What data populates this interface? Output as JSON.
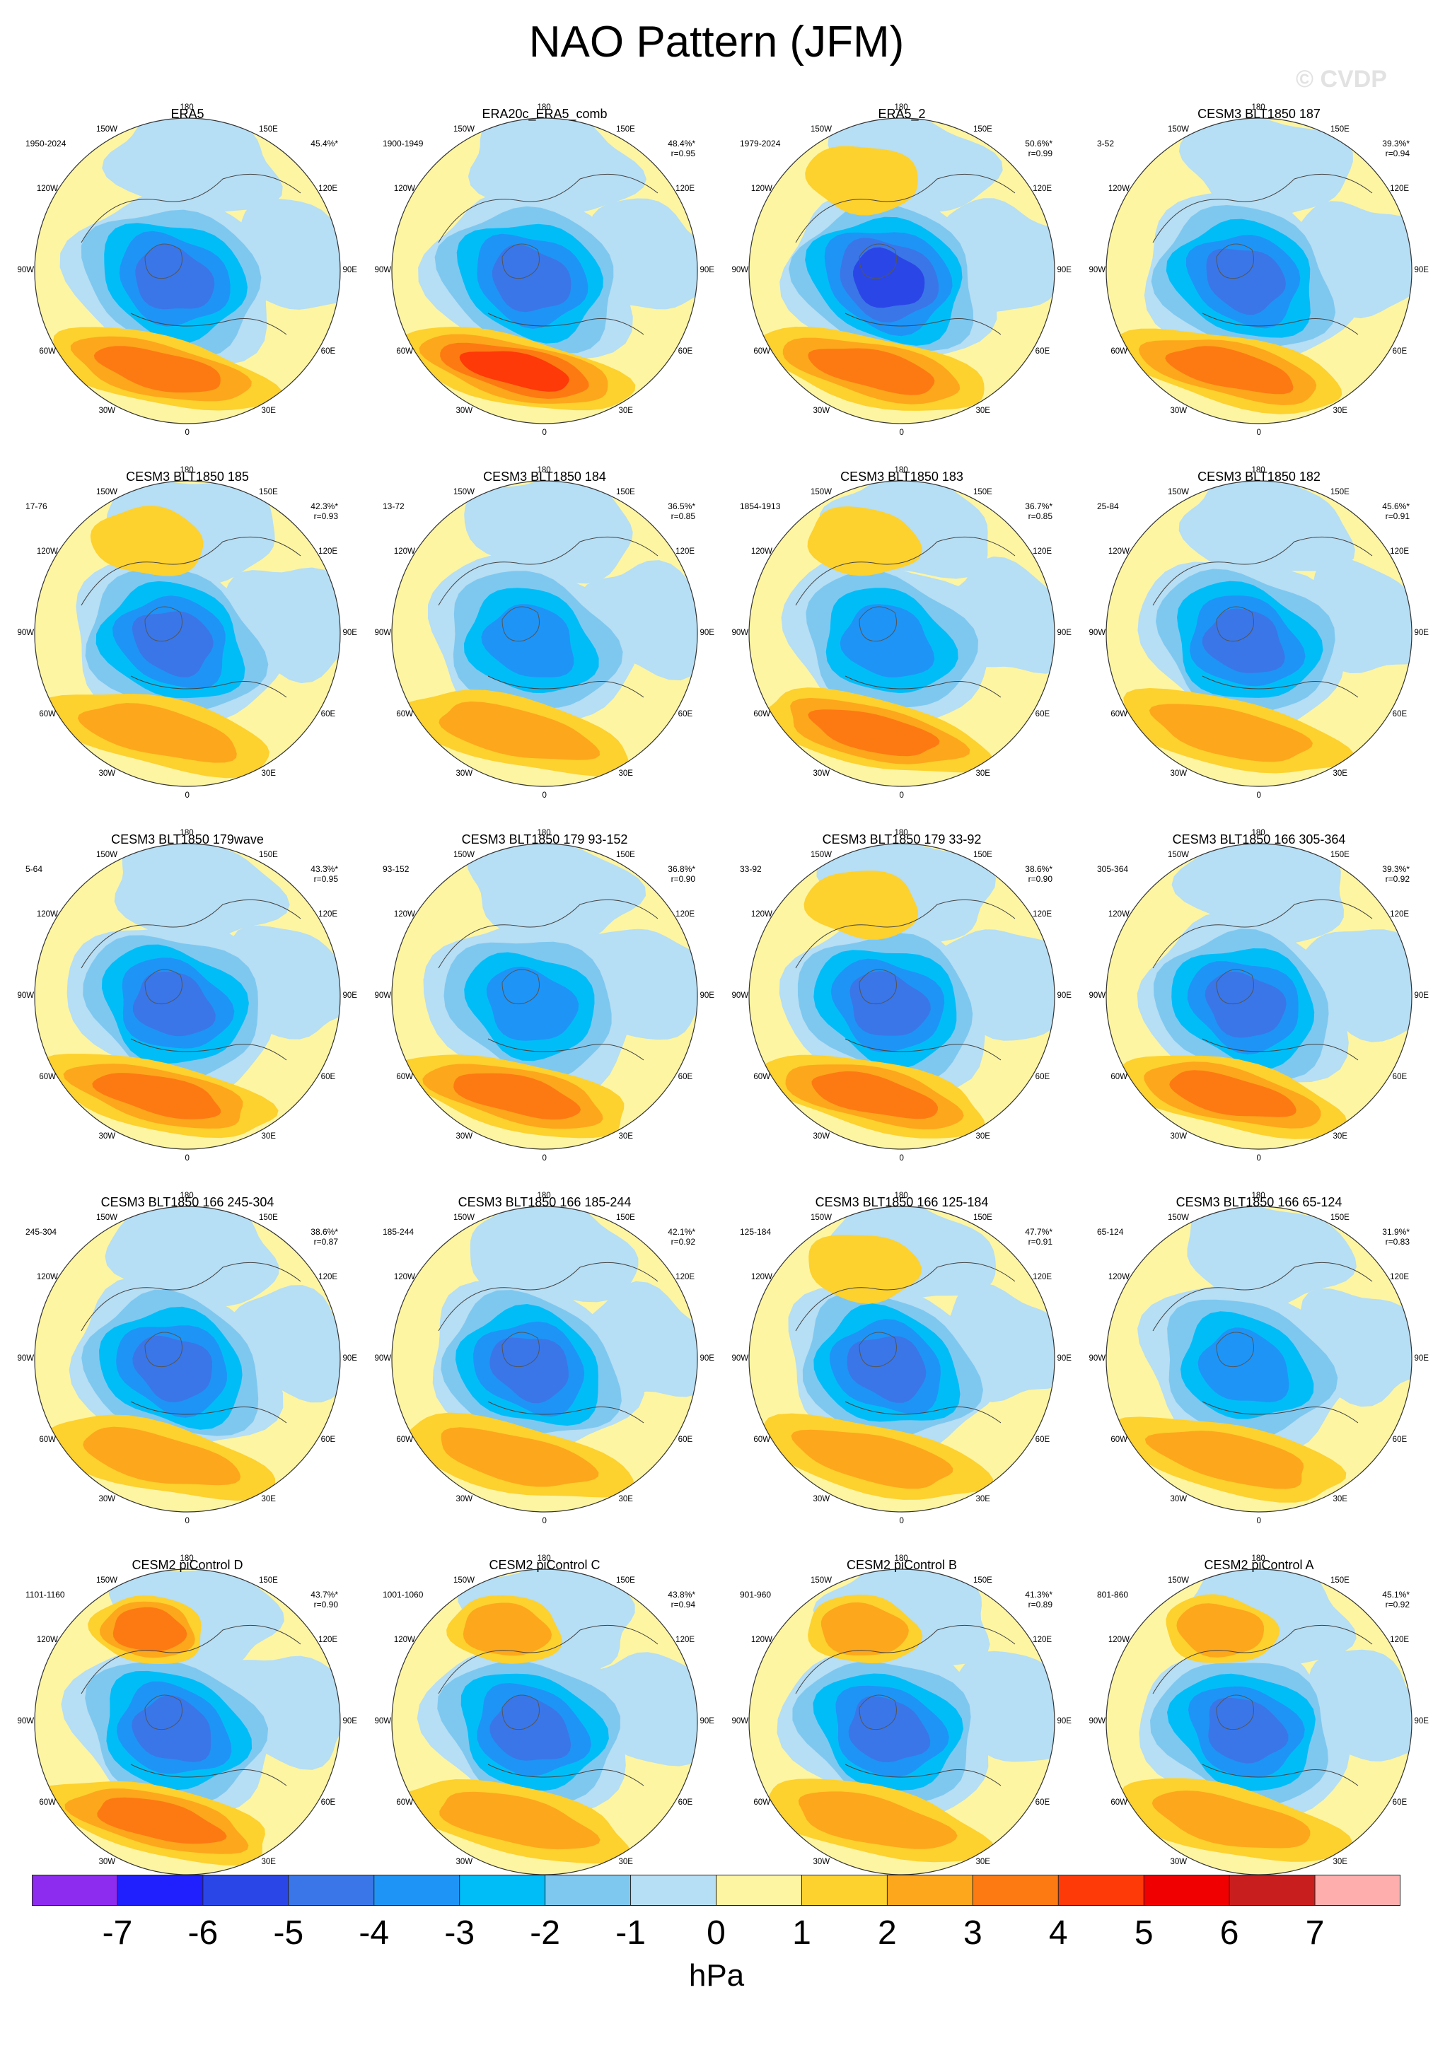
{
  "title": "NAO Pattern (JFM)",
  "watermark": "© CVDP",
  "map_labels": [
    "180",
    "150E",
    "120E",
    "90E",
    "60E",
    "30E",
    "0",
    "30W",
    "60W",
    "90W",
    "120W",
    "150W"
  ],
  "palette": {
    "levels": [
      -7,
      -6,
      -5,
      -4,
      -3,
      -2,
      -1,
      0,
      1,
      2,
      3,
      4,
      5,
      6,
      7
    ],
    "colors": [
      "#8d2bee",
      "#2020ff",
      "#2b46e6",
      "#3a76e8",
      "#1e94f7",
      "#00bdf8",
      "#7ec8f0",
      "#b6def4",
      "#fdf5a2",
      "#fdd12e",
      "#fda71c",
      "#fd7a12",
      "#fd3a08",
      "#f00000",
      "#c81e1e",
      "#ffaeae"
    ]
  },
  "colorbar": {
    "tick_labels": [
      "-7",
      "-6",
      "-5",
      "-4",
      "-3",
      "-2",
      "-1",
      "0",
      "1",
      "2",
      "3",
      "4",
      "5",
      "6",
      "7"
    ],
    "units": "hPa"
  },
  "panels": [
    {
      "name": "ERA5",
      "years": "1950-2024",
      "pct": "45.4%*",
      "r": "",
      "low": -5,
      "high": 3,
      "ht": 270
    },
    {
      "name": "ERA20c_ERA5_comb",
      "years": "1900-1949",
      "pct": "48.4%*",
      "r": "r=0.95",
      "low": -5,
      "high": 4,
      "ht": 285
    },
    {
      "name": "ERA5_2",
      "years": "1979-2024",
      "pct": "50.6%*",
      "r": "r=0.99",
      "low": -6,
      "high": 3,
      "ht": 270
    },
    {
      "name": "CESM3 BLT1850 187",
      "years": "3-52",
      "pct": "39.3%*",
      "r": "r=0.94",
      "low": -5,
      "high": 3,
      "ht": 278
    },
    {
      "name": "CESM3 BLT1850 185",
      "years": "17-76",
      "pct": "42.3%*",
      "r": "r=0.93",
      "low": -5,
      "high": 2,
      "ht": 265
    },
    {
      "name": "CESM3 BLT1850 184",
      "years": "13-72",
      "pct": "36.5%*",
      "r": "r=0.85",
      "low": -4,
      "high": 2,
      "ht": 268
    },
    {
      "name": "CESM3 BLT1850 183",
      "years": "1854-1913",
      "pct": "36.7%*",
      "r": "r=0.85",
      "low": -4,
      "high": 3,
      "ht": 258
    },
    {
      "name": "CESM3 BLT1850 182",
      "years": "25-84",
      "pct": "45.6%*",
      "r": "r=0.91",
      "low": -5,
      "high": 2,
      "ht": 270
    },
    {
      "name": "CESM3 BLT1850 179wave",
      "years": "5-64",
      "pct": "43.3%*",
      "r": "r=0.95",
      "low": -5,
      "high": 3,
      "ht": 255
    },
    {
      "name": "CESM3 BLT1850 179 93-152",
      "years": "93-152",
      "pct": "36.8%*",
      "r": "r=0.90",
      "low": -4,
      "high": 3,
      "ht": 268
    },
    {
      "name": "CESM3 BLT1850 179 33-92",
      "years": "33-92",
      "pct": "38.6%*",
      "r": "r=0.90",
      "low": -5,
      "high": 3,
      "ht": 278
    },
    {
      "name": "CESM3 BLT1850 166 305-364",
      "years": "305-364",
      "pct": "39.3%*",
      "r": "r=0.92",
      "low": -5,
      "high": 3,
      "ht": 275
    },
    {
      "name": "CESM3 BLT1850 166 245-304",
      "years": "245-304",
      "pct": "38.6%*",
      "r": "r=0.87",
      "low": -5,
      "high": 2,
      "ht": 262
    },
    {
      "name": "CESM3 BLT1850 166 185-244",
      "years": "185-244",
      "pct": "42.1%*",
      "r": "r=0.92",
      "low": -5,
      "high": 2,
      "ht": 265
    },
    {
      "name": "CESM3 BLT1850 166 125-184",
      "years": "125-184",
      "pct": "47.7%*",
      "r": "r=0.91",
      "low": -5,
      "high": 2,
      "ht": 262
    },
    {
      "name": "CESM3 BLT1850 166 65-124",
      "years": "65-124",
      "pct": "31.9%*",
      "r": "r=0.83",
      "low": -4,
      "high": 2,
      "ht": 282
    },
    {
      "name": "CESM2 piControl D",
      "years": "1101-1160",
      "pct": "43.7%*",
      "r": "r=0.90",
      "low": -5,
      "high": 3,
      "ht": 265
    },
    {
      "name": "CESM2 piControl C",
      "years": "1001-1060",
      "pct": "43.8%*",
      "r": "r=0.94",
      "low": -5,
      "high": 2,
      "ht": 270
    },
    {
      "name": "CESM2 piControl B",
      "years": "901-960",
      "pct": "41.3%*",
      "r": "r=0.89",
      "low": -5,
      "high": 2,
      "ht": 265
    },
    {
      "name": "CESM2 piControl A",
      "years": "801-860",
      "pct": "45.1%*",
      "r": "r=0.92",
      "low": -5,
      "high": 2,
      "ht": 272
    }
  ]
}
